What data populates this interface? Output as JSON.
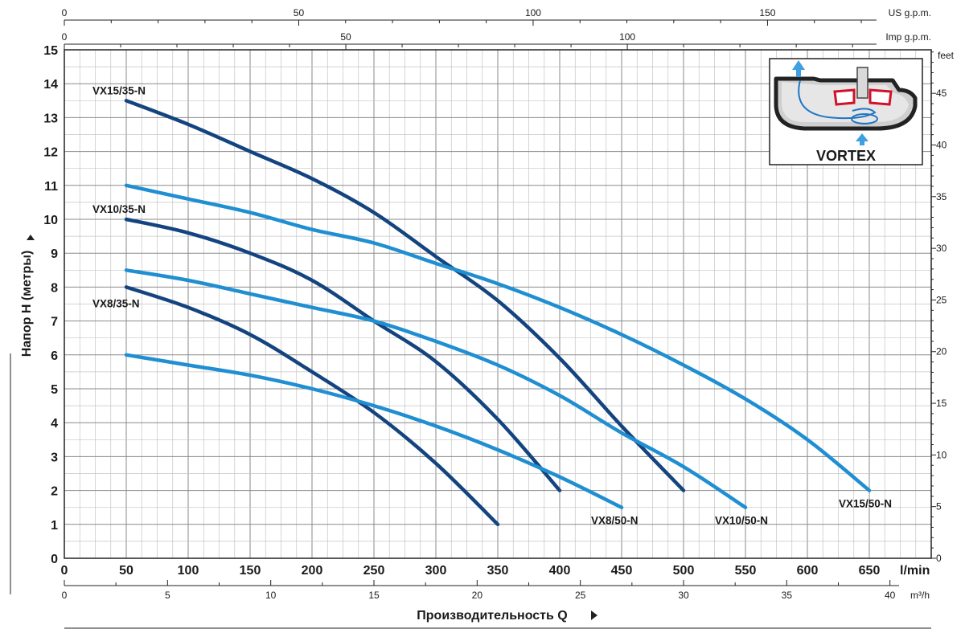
{
  "chart_data": {
    "type": "line",
    "xlabel": "Производительность Q",
    "ylabel": "Напор H (метры)",
    "x_unit": "l/min",
    "x_ticks": [
      0,
      50,
      100,
      150,
      200,
      250,
      300,
      350,
      400,
      450,
      500,
      550,
      600,
      650
    ],
    "xlim": [
      0,
      700
    ],
    "y_ticks": [
      0,
      1,
      2,
      3,
      4,
      5,
      6,
      7,
      8,
      9,
      10,
      11,
      12,
      13,
      14,
      15
    ],
    "ylim": [
      0,
      15
    ],
    "grid": true,
    "secondary_axes": {
      "us_gpm": {
        "unit": "US g.p.m.",
        "ticks": [
          0,
          50,
          100,
          150
        ]
      },
      "imp_gpm": {
        "unit": "Imp g.p.m.",
        "ticks": [
          0,
          50,
          100
        ]
      },
      "m3h": {
        "unit": "m³/h",
        "ticks": [
          0,
          5,
          10,
          15,
          20,
          25,
          30,
          35,
          40
        ]
      },
      "feet": {
        "unit": "feet",
        "ticks": [
          0,
          5,
          10,
          15,
          20,
          25,
          30,
          35,
          40,
          45
        ]
      }
    },
    "series": [
      {
        "name": "VX15/35-N",
        "color": "#14447f",
        "x": [
          50,
          100,
          150,
          200,
          250,
          300,
          350,
          400,
          450,
          500
        ],
        "y": [
          13.5,
          12.8,
          12.0,
          11.2,
          10.2,
          8.9,
          7.6,
          5.9,
          3.9,
          2.0
        ]
      },
      {
        "name": "VX10/35-N",
        "color": "#14447f",
        "x": [
          50,
          100,
          150,
          200,
          250,
          300,
          350,
          400
        ],
        "y": [
          10.0,
          9.6,
          9.0,
          8.2,
          7.0,
          5.8,
          4.1,
          2.0
        ]
      },
      {
        "name": "VX8/35-N",
        "color": "#14447f",
        "x": [
          50,
          100,
          150,
          200,
          250,
          300,
          350
        ],
        "y": [
          8.0,
          7.4,
          6.6,
          5.5,
          4.3,
          2.8,
          1.0
        ]
      },
      {
        "name": "VX15/50-N",
        "color": "#1f8fd2",
        "x": [
          50,
          100,
          150,
          200,
          250,
          300,
          350,
          400,
          450,
          500,
          550,
          600,
          650
        ],
        "y": [
          11.0,
          10.6,
          10.2,
          9.7,
          9.3,
          8.7,
          8.1,
          7.4,
          6.6,
          5.7,
          4.7,
          3.5,
          2.0
        ]
      },
      {
        "name": "VX10/50-N",
        "color": "#1f8fd2",
        "x": [
          50,
          100,
          150,
          200,
          250,
          300,
          350,
          400,
          450,
          500,
          550
        ],
        "y": [
          8.5,
          8.2,
          7.8,
          7.4,
          7.0,
          6.4,
          5.7,
          4.8,
          3.7,
          2.7,
          1.5
        ]
      },
      {
        "name": "VX8/50-N",
        "color": "#1f8fd2",
        "x": [
          50,
          100,
          150,
          200,
          250,
          300,
          350,
          400,
          450
        ],
        "y": [
          6.0,
          5.7,
          5.4,
          5.0,
          4.5,
          3.9,
          3.2,
          2.4,
          1.5
        ]
      }
    ]
  },
  "inset": {
    "title": "VORTEX",
    "icon": "vortex-impeller-icon"
  }
}
